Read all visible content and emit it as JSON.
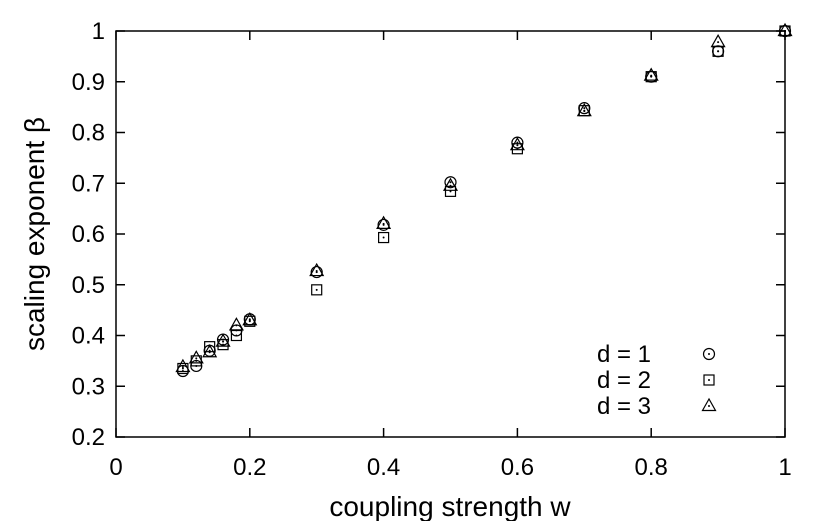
{
  "chart_data": {
    "type": "scatter",
    "title": "",
    "xlabel": "coupling strength w",
    "ylabel": "scaling exponent β",
    "xlim": [
      0,
      1
    ],
    "ylim": [
      0.2,
      1
    ],
    "xticks": [
      0,
      0.2,
      0.4,
      0.6,
      0.8,
      1
    ],
    "xtick_labels": [
      "0",
      "0.2",
      "0.4",
      "0.6",
      "0.8",
      "1"
    ],
    "yticks": [
      0.2,
      0.3,
      0.4,
      0.5,
      0.6,
      0.7,
      0.8,
      0.9,
      1
    ],
    "ytick_labels": [
      "0.2",
      "0.3",
      "0.4",
      "0.5",
      "0.6",
      "0.7",
      "0.8",
      "0.9",
      "1"
    ],
    "grid": false,
    "legend_position": "bottom-right",
    "series": [
      {
        "name": "d = 1",
        "marker": "circle",
        "x": [
          0.1,
          0.12,
          0.14,
          0.16,
          0.18,
          0.2,
          0.3,
          0.4,
          0.5,
          0.6,
          0.7,
          0.8,
          0.9,
          1.0
        ],
        "y": [
          0.33,
          0.34,
          0.37,
          0.392,
          0.41,
          0.432,
          0.525,
          0.618,
          0.702,
          0.78,
          0.848,
          0.91,
          0.96,
          1.0
        ]
      },
      {
        "name": "d = 2",
        "marker": "square",
        "x": [
          0.1,
          0.12,
          0.14,
          0.16,
          0.18,
          0.2,
          0.3,
          0.4,
          0.5,
          0.6,
          0.7,
          0.8,
          0.9,
          1.0
        ],
        "y": [
          0.335,
          0.35,
          0.378,
          0.382,
          0.4,
          0.428,
          0.49,
          0.593,
          0.684,
          0.768,
          0.843,
          0.91,
          0.96,
          1.0
        ]
      },
      {
        "name": "d = 3",
        "marker": "triangle",
        "x": [
          0.1,
          0.12,
          0.14,
          0.16,
          0.18,
          0.2,
          0.3,
          0.4,
          0.5,
          0.6,
          0.7,
          0.8,
          0.9,
          1.0
        ],
        "y": [
          0.338,
          0.355,
          0.367,
          0.388,
          0.42,
          0.43,
          0.527,
          0.62,
          0.695,
          0.775,
          0.842,
          0.912,
          0.978,
          1.0
        ]
      }
    ]
  }
}
